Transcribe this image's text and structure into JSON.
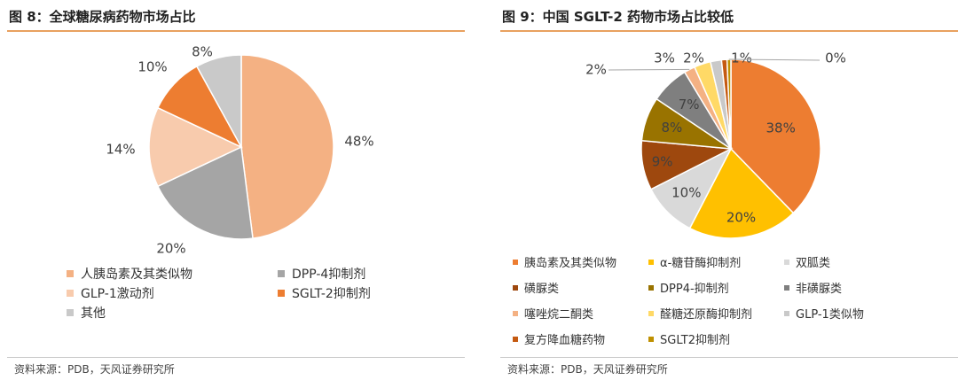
{
  "panels": [
    {
      "title": "图 8：全球糖尿病药物市场占比",
      "source": "资料来源：PDB，天风证券研究所",
      "legend_items": [
        "人胰岛素及其类似物",
        "DPP-4抑制剂",
        "GLP-1激动剂",
        "SGLT-2抑制剂",
        "其他"
      ]
    },
    {
      "title": "图 9：中国 SGLT-2 药物市场占比较低",
      "source": "资料来源：PDB，天风证券研究所",
      "legend_items": [
        "胰岛素及其类似物",
        "α-糖苷酶抑制剂",
        "双胍类",
        "磺脲类",
        "DPP4-抑制剂",
        "非磺脲类",
        "噻唑烷二酮类",
        "醛糖还原酶抑制剂",
        "GLP-1类似物",
        "复方降血糖药物",
        "SGLT2抑制剂"
      ]
    }
  ],
  "chart_data": [
    {
      "type": "pie",
      "title": "图 8：全球糖尿病药物市场占比",
      "labels": [
        "人胰岛素及其类似物",
        "DPP-4抑制剂",
        "GLP-1激动剂",
        "SGLT-2抑制剂",
        "其他"
      ],
      "values": [
        48,
        20,
        14,
        10,
        8
      ],
      "data_labels": [
        "48%",
        "20%",
        "14%",
        "10%",
        "8%"
      ],
      "colors": [
        "#f4b183",
        "#a5a5a5",
        "#f8cbad",
        "#ed7d31",
        "#c9c9c9"
      ],
      "legend": "bottom"
    },
    {
      "type": "pie",
      "title": "图 9：中国 SGLT-2 药物市场占比较低",
      "labels": [
        "胰岛素及其类似物",
        "α-糖苷酶抑制剂",
        "双胍类",
        "磺脲类",
        "DPP4-抑制剂",
        "非磺脲类",
        "噻唑烷二酮类",
        "醛糖还原酶抑制剂",
        "GLP-1类似物",
        "复方降血糖药物",
        "SGLT2抑制剂"
      ],
      "values": [
        38,
        20,
        10,
        9,
        8,
        7,
        2,
        3,
        2,
        1,
        0
      ],
      "data_labels": [
        "38%",
        "20%",
        "10%",
        "9%",
        "8%",
        "7%",
        "2%",
        "3%",
        "2%",
        "1%",
        "0%"
      ],
      "colors": [
        "#ed7d31",
        "#ffc000",
        "#d9d9d9",
        "#9e480e",
        "#997300",
        "#7f7f7f",
        "#f4b183",
        "#ffd966",
        "#c9c9c9",
        "#c55a11",
        "#bf9000"
      ],
      "legend": "bottom"
    }
  ]
}
